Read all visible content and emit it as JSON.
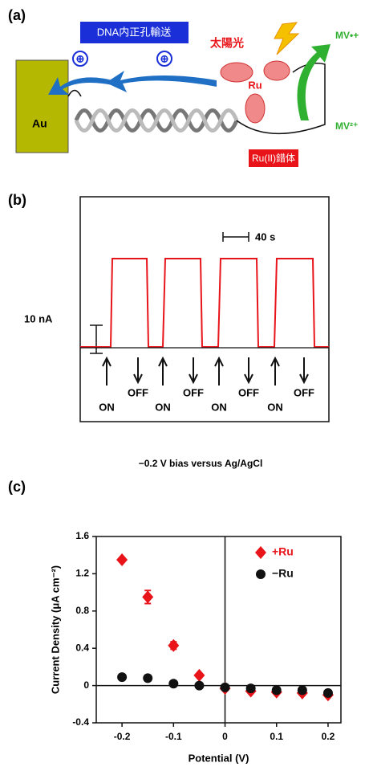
{
  "panel_a": {
    "label": "(a)",
    "transport": "DNA内正孔輸送",
    "hole1": "⊕",
    "hole2": "⊕",
    "sunlight": "太陽光",
    "ru": "Ru",
    "mv_reduced": "MV•+",
    "mv_oxidized": "MV²⁺",
    "electrode": "Au",
    "complex": "Ru(II)錯体"
  },
  "panel_b": {
    "label": "(b)",
    "time_scale": "40 s",
    "current_scale": "10 nA",
    "events": [
      {
        "on": "ON",
        "off": "OFF"
      },
      {
        "on": "ON",
        "off": "OFF"
      },
      {
        "on": "ON",
        "off": "OFF"
      },
      {
        "on": "ON",
        "off": "OFF"
      }
    ],
    "caption": "−0.2 V bias versus Ag/AgCl"
  },
  "panel_c": {
    "label": "(c)"
  },
  "chart_data": {
    "type": "scatter",
    "x_label": "Potential (V)",
    "y_label": "Current Density (μA cm⁻²)",
    "x": [
      -0.2,
      -0.15,
      -0.1,
      -0.05,
      0,
      0.05,
      0.1,
      0.15,
      0.2
    ],
    "series": [
      {
        "name": "+Ru",
        "color": "#e8141a",
        "marker": "diamond",
        "values": [
          1.35,
          0.95,
          0.43,
          0.11,
          -0.03,
          -0.06,
          -0.07,
          -0.08,
          -0.1
        ],
        "errors": [
          null,
          0.07,
          0.04,
          null,
          null,
          null,
          null,
          null,
          null
        ]
      },
      {
        "name": "−Ru",
        "color": "#111111",
        "marker": "circle",
        "values": [
          0.09,
          0.08,
          0.02,
          0,
          -0.02,
          -0.03,
          -0.05,
          -0.05,
          -0.08
        ],
        "errors": [
          null,
          0.03,
          null,
          null,
          null,
          null,
          null,
          null,
          null
        ]
      }
    ],
    "xlim": [
      -0.25,
      0.225
    ],
    "ylim": [
      -0.4,
      1.6
    ],
    "xticks": [
      -0.2,
      -0.1,
      0,
      0.1,
      0.2
    ],
    "yticks": [
      -0.4,
      0,
      0.4,
      0.8,
      1.2,
      1.6
    ],
    "legend": "upper right"
  }
}
